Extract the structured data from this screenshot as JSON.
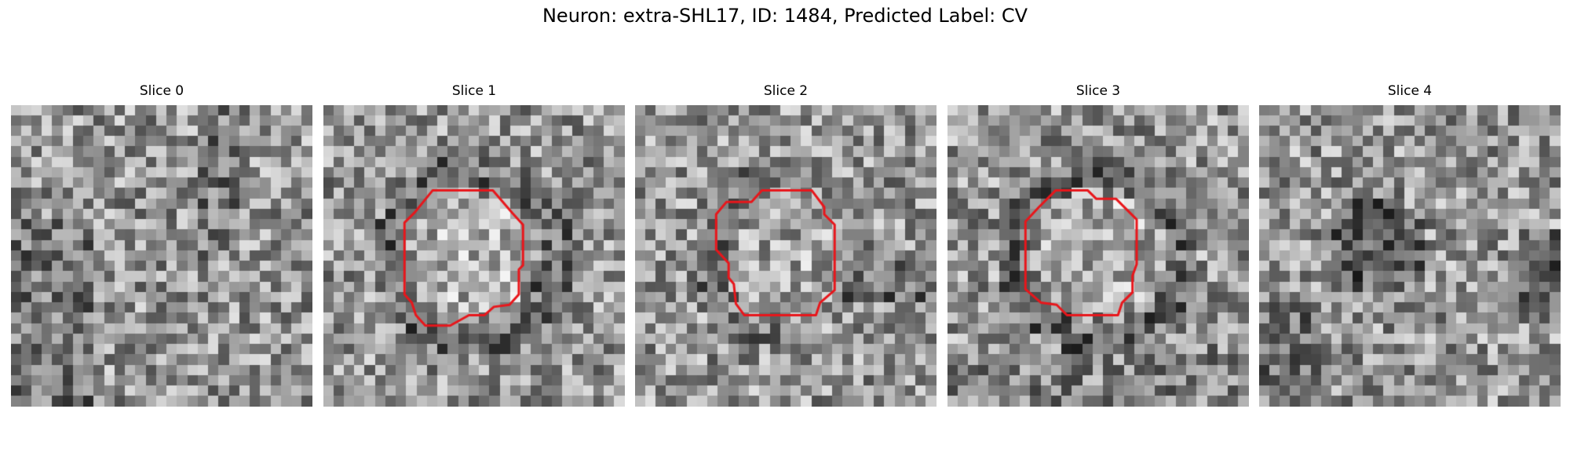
{
  "figure": {
    "title": "Neuron: extra-SHL17, ID: 1484, Predicted Label: CV"
  },
  "panels": [
    {
      "title": "Slice 0",
      "has_outline": false,
      "dark_blob": "none"
    },
    {
      "title": "Slice 1",
      "has_outline": true,
      "dark_blob": "ring"
    },
    {
      "title": "Slice 2",
      "has_outline": true,
      "dark_blob": "patchy"
    },
    {
      "title": "Slice 3",
      "has_outline": true,
      "dark_blob": "ring"
    },
    {
      "title": "Slice 4",
      "has_outline": false,
      "dark_blob": "center-dark"
    }
  ],
  "colors": {
    "outline": "#e8161b",
    "background": "#ffffff"
  }
}
